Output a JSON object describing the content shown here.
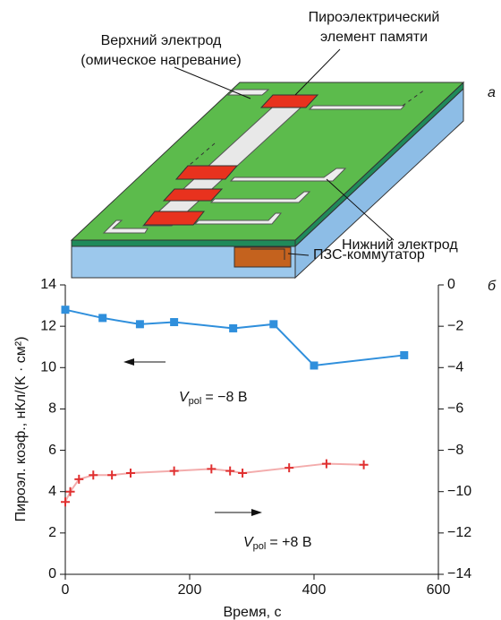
{
  "diagram": {
    "panel_label": "а",
    "labels": {
      "top_electrode": [
        "Верхний электрод",
        "(омическое нагревание)"
      ],
      "pyro_element": [
        "Пироэлектрический",
        "элемент памяти"
      ],
      "bottom_electrode": "Нижний электрод",
      "ccd": "ПЗС-коммутатор"
    }
  },
  "chart_data": {
    "type": "line",
    "panel_label": "б",
    "xlabel": "Время, с",
    "ylabel": "Пироэл. коэф., нКл/(K · см²)",
    "xlim": [
      0,
      600
    ],
    "xticks": [
      0,
      200,
      400,
      600
    ],
    "ylim": [
      0,
      14
    ],
    "yticks": [
      0,
      2,
      4,
      6,
      8,
      10,
      12,
      14
    ],
    "y2lim": [
      -14,
      0
    ],
    "y2ticks": [
      {
        "value": -14,
        "label": "−14"
      },
      {
        "value": -12,
        "label": "−12"
      },
      {
        "value": -10,
        "label": "−10"
      },
      {
        "value": -8,
        "label": "−8"
      },
      {
        "value": -6,
        "label": "−6"
      },
      {
        "value": -4,
        "label": "−4"
      },
      {
        "value": -2,
        "label": "−2"
      },
      0
    ],
    "annotations": [
      {
        "symbol": "V",
        "subscript": "pol",
        "text": "= −8 В"
      },
      {
        "symbol": "V",
        "subscript": "pol",
        "text": "= +8 В"
      }
    ],
    "series": [
      {
        "color": "#2f8fdc",
        "marker": "square",
        "axis": "y",
        "x": [
          0,
          60,
          120,
          175,
          270,
          335,
          400,
          545
        ],
        "values": [
          12.8,
          12.4,
          12.1,
          12.2,
          11.9,
          12.1,
          10.1,
          10.6
        ]
      },
      {
        "color": "#e03030",
        "marker": "plus",
        "axis": "y2",
        "x": [
          0,
          8,
          22,
          45,
          75,
          105,
          175,
          235,
          265,
          285,
          360,
          420,
          480
        ],
        "values": [
          -10.5,
          -10.0,
          -9.4,
          -9.2,
          -9.2,
          -9.1,
          -9.0,
          -8.9,
          -9.0,
          -9.1,
          -8.85,
          -8.65,
          -8.7
        ]
      }
    ]
  }
}
